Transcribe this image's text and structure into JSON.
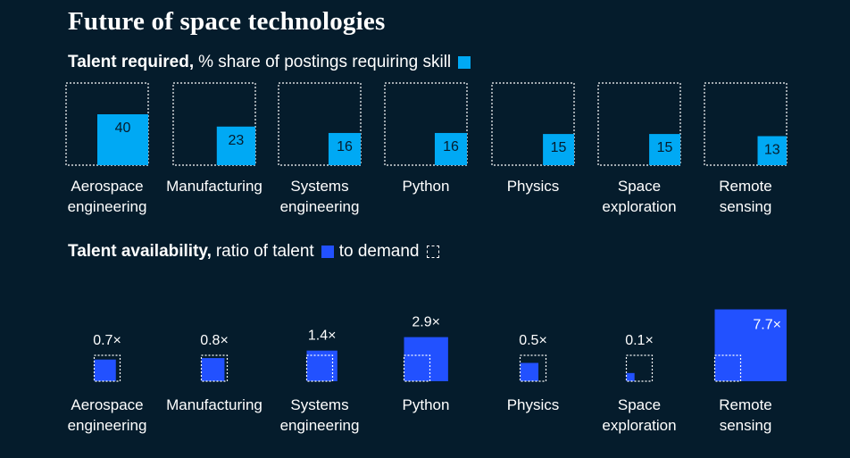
{
  "title": "Future of space technologies",
  "colors": {
    "background": "#051c2c",
    "required": "#00a9f4",
    "availability": "#2251ff",
    "outline": "#ffffff"
  },
  "talent_required_label": {
    "bold": "Talent required,",
    "rest": "% share of postings requiring skill"
  },
  "talent_availability_label": {
    "bold": "Talent availability,",
    "rest": "ratio of talent",
    "mid": "to demand"
  },
  "chart_data": [
    {
      "type": "bar",
      "title": "Talent required",
      "subtitle": "% share of postings requiring skill",
      "categories": [
        [
          "Aerospace",
          "engineering"
        ],
        [
          "Manufacturing"
        ],
        [
          "Systems",
          "engineering"
        ],
        [
          "Python"
        ],
        [
          "Physics"
        ],
        [
          "Space",
          "exploration"
        ],
        [
          "Remote",
          "sensing"
        ]
      ],
      "values": [
        40,
        23,
        16,
        16,
        15,
        15,
        13
      ],
      "labels": [
        "40",
        "23",
        "16",
        "16",
        "15",
        "15",
        "13"
      ]
    },
    {
      "type": "bar",
      "title": "Talent availability",
      "subtitle": "ratio of talent to demand",
      "categories": [
        [
          "Aerospace",
          "engineering"
        ],
        [
          "Manufacturing"
        ],
        [
          "Systems",
          "engineering"
        ],
        [
          "Python"
        ],
        [
          "Physics"
        ],
        [
          "Space",
          "exploration"
        ],
        [
          "Remote",
          "sensing"
        ]
      ],
      "values": [
        0.7,
        0.8,
        1.4,
        2.9,
        0.5,
        0.1,
        7.7
      ],
      "labels": [
        "0.7×",
        "0.8×",
        "1.4×",
        "2.9×",
        "0.5×",
        "0.1×",
        "7.7×"
      ]
    }
  ]
}
